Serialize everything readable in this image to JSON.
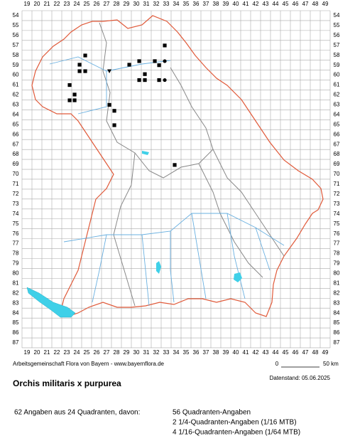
{
  "map": {
    "columns": [
      19,
      20,
      21,
      22,
      23,
      24,
      25,
      26,
      27,
      28,
      29,
      30,
      31,
      32,
      33,
      34,
      35,
      36,
      37,
      38,
      39,
      40,
      41,
      42,
      43,
      44,
      45,
      46,
      47,
      48,
      49
    ],
    "rows": [
      54,
      55,
      56,
      57,
      58,
      59,
      60,
      61,
      62,
      63,
      64,
      65,
      66,
      67,
      68,
      69,
      70,
      71,
      72,
      73,
      74,
      75,
      76,
      77,
      78,
      79,
      80,
      81,
      82,
      83,
      84,
      85,
      86,
      87
    ],
    "records": [
      {
        "x": 32.86,
        "y": 57.01,
        "symbol": "square"
      },
      {
        "x": 24.86,
        "y": 58.02,
        "symbol": "square"
      },
      {
        "x": 24.29,
        "y": 58.95,
        "symbol": "square"
      },
      {
        "x": 29.29,
        "y": 58.95,
        "symbol": "square"
      },
      {
        "x": 30.29,
        "y": 58.59,
        "symbol": "square"
      },
      {
        "x": 31.86,
        "y": 58.59,
        "symbol": "square"
      },
      {
        "x": 32.29,
        "y": 59.0,
        "symbol": "square"
      },
      {
        "x": 32.86,
        "y": 58.59,
        "symbol": "circle"
      },
      {
        "x": 24.29,
        "y": 59.6,
        "symbol": "square"
      },
      {
        "x": 24.86,
        "y": 59.6,
        "symbol": "square"
      },
      {
        "x": 27.29,
        "y": 59.6,
        "symbol": "triangle"
      },
      {
        "x": 30.86,
        "y": 59.9,
        "symbol": "square"
      },
      {
        "x": 30.29,
        "y": 60.5,
        "symbol": "square"
      },
      {
        "x": 30.86,
        "y": 60.5,
        "symbol": "square"
      },
      {
        "x": 32.29,
        "y": 60.5,
        "symbol": "square"
      },
      {
        "x": 32.86,
        "y": 60.5,
        "symbol": "circle"
      },
      {
        "x": 23.29,
        "y": 61.0,
        "symbol": "square"
      },
      {
        "x": 23.79,
        "y": 61.96,
        "symbol": "square"
      },
      {
        "x": 23.29,
        "y": 62.54,
        "symbol": "square"
      },
      {
        "x": 23.79,
        "y": 62.54,
        "symbol": "square"
      },
      {
        "x": 27.29,
        "y": 63.0,
        "symbol": "square"
      },
      {
        "x": 27.79,
        "y": 63.6,
        "symbol": "square"
      },
      {
        "x": 27.79,
        "y": 65.05,
        "symbol": "square"
      },
      {
        "x": 33.86,
        "y": 69.06,
        "symbol": "square"
      }
    ]
  },
  "footer": {
    "credit": "Arbeitsgemeinschaft Flora von Bayern - www.bayernflora.de",
    "scale_start": "0",
    "scale_end": "50 km",
    "date": "Datenstand: 05.06.2025",
    "title": "Orchis militaris x purpurea",
    "summary": "62 Angaben aus 24 Quadranten, davon:",
    "details": [
      "56 Quadranten-Angaben",
      "2 1/4-Quadranten-Angaben (1/16 MTB)",
      "4 1/16-Quadranten-Angaben (1/64 MTB)"
    ]
  }
}
